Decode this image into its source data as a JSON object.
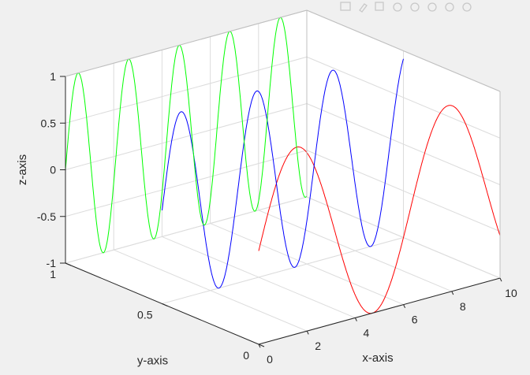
{
  "figure": {
    "background": "#f0f0f0",
    "axes_background": "#ffffff",
    "toolbar_icons": [
      "data-tips-icon",
      "brush-icon",
      "export-icon",
      "rotate-icon",
      "pan-icon",
      "zoom-in-icon",
      "zoom-out-icon",
      "home-icon"
    ]
  },
  "chart_data": {
    "type": "line",
    "projection": "3d",
    "view": {
      "azimuth": -37.5,
      "elevation": 30
    },
    "grid": true,
    "box": true,
    "title": "",
    "xlabel": "x-axis",
    "ylabel": "y-axis",
    "zlabel": "z-axis",
    "xlim": [
      0,
      10
    ],
    "ylim": [
      0,
      1
    ],
    "zlim": [
      -1,
      1
    ],
    "xticks": [
      0,
      2,
      4,
      6,
      8,
      10
    ],
    "yticks": [
      0,
      0.5,
      1
    ],
    "zticks": [
      -1,
      -0.5,
      0,
      0.5,
      1
    ],
    "xtick_labels": [
      "0",
      "2",
      "4",
      "6",
      "8",
      "10"
    ],
    "ytick_labels": [
      "0",
      "0.5",
      "1"
    ],
    "ztick_labels": [
      "-1",
      "-0.5",
      "0",
      "0.5",
      "1"
    ],
    "series": [
      {
        "color": "#ff0000",
        "plane": "y=0",
        "x_range": [
          0,
          10
        ],
        "frequency": 1,
        "phase": 0,
        "note_formula": "z = sin(x)"
      },
      {
        "color": "#0000ff",
        "plane": "y=0.5",
        "x_range": [
          0,
          10
        ],
        "frequency": 2,
        "phase": 0,
        "note_formula": "z = sin(2x)"
      },
      {
        "color": "#00ff00",
        "plane": "y=1",
        "x_range": [
          0,
          10
        ],
        "frequency": 3,
        "phase": 0,
        "note_formula": "z = sin(3x)"
      }
    ]
  }
}
